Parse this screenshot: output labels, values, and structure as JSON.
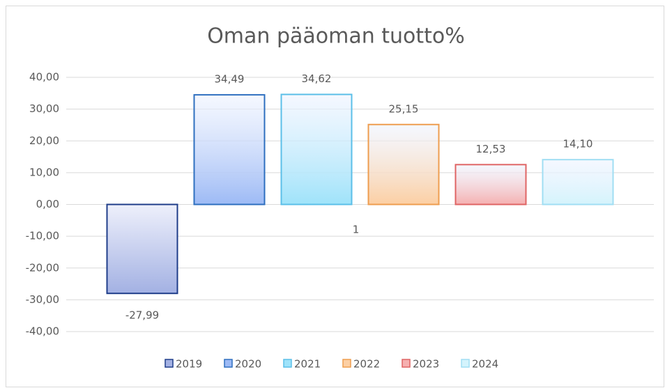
{
  "chart_data": {
    "type": "bar",
    "title": "Oman pääoman tuotto%",
    "categories": [
      "1"
    ],
    "series": [
      {
        "name": "2019",
        "color": "#a3b1e3",
        "border_color": "#1f3d8a",
        "values": [
          -27.99
        ],
        "value_labels": [
          "-27,99"
        ]
      },
      {
        "name": "2020",
        "color": "#9dbaf5",
        "border_color": "#2e6fbf",
        "values": [
          34.49
        ],
        "value_labels": [
          "34,49"
        ]
      },
      {
        "name": "2021",
        "color": "#9fe3fa",
        "border_color": "#5bbfe8",
        "values": [
          34.62
        ],
        "value_labels": [
          "34,62"
        ]
      },
      {
        "name": "2022",
        "color": "#fccfa3",
        "border_color": "#ee9d4f",
        "values": [
          25.15
        ],
        "value_labels": [
          "25,15"
        ]
      },
      {
        "name": "2023",
        "color": "#f5b0b0",
        "border_color": "#df6464",
        "values": [
          12.53
        ],
        "value_labels": [
          "12,53"
        ]
      },
      {
        "name": "2024",
        "color": "#d4f3fc",
        "border_color": "#a0def3",
        "values": [
          14.1
        ],
        "value_labels": [
          "14,10"
        ]
      }
    ],
    "ylim": [
      -40,
      40
    ],
    "yticks": [
      {
        "value": -40,
        "label": "-40,00"
      },
      {
        "value": -30,
        "label": "-30,00"
      },
      {
        "value": -20,
        "label": "-20,00"
      },
      {
        "value": -10,
        "label": "-10,00"
      },
      {
        "value": 0,
        "label": "0,00"
      },
      {
        "value": 10,
        "label": "10,00"
      },
      {
        "value": 20,
        "label": "20,00"
      },
      {
        "value": 30,
        "label": "30,00"
      },
      {
        "value": 40,
        "label": "40,00"
      }
    ],
    "grid": true,
    "legend": "bottom"
  }
}
